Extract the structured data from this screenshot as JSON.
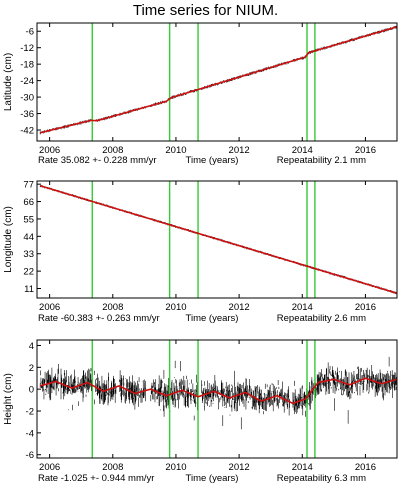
{
  "title": "Time series for NIUM.",
  "colors": {
    "data": "#000000",
    "model": "#cc1010",
    "break": "#33cc33",
    "frame": "#000000"
  },
  "chart_data": [
    {
      "type": "line",
      "ylabel": "Latitude (cm)",
      "xlabel": "Time (years)",
      "xlim": [
        2005.6,
        2017.0
      ],
      "ylim": [
        -46,
        -3
      ],
      "yticks": [
        -6,
        -12,
        -18,
        -24,
        -30,
        -36,
        -42
      ],
      "xticks": [
        2006,
        2008,
        2010,
        2012,
        2014,
        2016
      ],
      "rate": "Rate 35.082 +- 0.228 mm/yr",
      "repeatability": "Repeatability 2.1 mm",
      "breaks": [
        2007.35,
        2009.8,
        2010.7,
        2014.15,
        2014.4
      ],
      "series": [
        {
          "x": [
            2005.7,
            2007.3,
            2007.5,
            2009.7,
            2009.85,
            2014.1,
            2014.2,
            2017.0
          ],
          "values": [
            -43.0,
            -38.5,
            -38.6,
            -31.5,
            -30.2,
            -15.4,
            -13.8,
            -4.4
          ]
        }
      ],
      "data_gaps": [
        [
          2006.3,
          2006.35
        ],
        [
          2007.35,
          2007.45
        ],
        [
          2008.1,
          2008.2
        ],
        [
          2009.05,
          2009.2
        ],
        [
          2010.7,
          2010.8
        ],
        [
          2013.6,
          2013.7
        ]
      ],
      "noise": 0.6
    },
    {
      "type": "line",
      "ylabel": "Longitude (cm)",
      "xlabel": "Time (years)",
      "xlim": [
        2005.6,
        2017.0
      ],
      "ylim": [
        5,
        79
      ],
      "yticks": [
        77,
        66,
        55,
        44,
        33,
        22,
        11
      ],
      "xticks": [
        2006,
        2008,
        2010,
        2012,
        2014,
        2016
      ],
      "rate": "Rate -60.383 +- 0.263 mm/yr",
      "repeatability": "Repeatability 2.6 mm",
      "breaks": [
        2007.35,
        2009.8,
        2010.7,
        2014.15,
        2014.4
      ],
      "series": [
        {
          "x": [
            2005.7,
            2017.0
          ],
          "values": [
            76.0,
            8.0
          ]
        }
      ],
      "data_gaps": [
        [
          2006.3,
          2006.35
        ],
        [
          2007.35,
          2007.45
        ],
        [
          2008.1,
          2008.2
        ],
        [
          2009.05,
          2009.2
        ],
        [
          2010.7,
          2010.8
        ],
        [
          2013.6,
          2013.7
        ]
      ],
      "noise": 0.8
    },
    {
      "type": "line",
      "ylabel": "Height (cm)",
      "xlabel": "Time (years)",
      "xlim": [
        2005.6,
        2017.0
      ],
      "ylim": [
        -6.3,
        4.5
      ],
      "yticks": [
        4,
        2,
        0,
        -2,
        -4,
        -6
      ],
      "xticks": [
        2006,
        2008,
        2010,
        2012,
        2014,
        2016
      ],
      "rate": "Rate -1.025 +- 0.944 mm/yr",
      "repeatability": "Repeatability 6.3 mm",
      "breaks": [
        2007.35,
        2009.8,
        2010.7,
        2014.15,
        2014.4
      ],
      "series": [
        {
          "x": [
            2005.7,
            2006.2,
            2006.7,
            2007.2,
            2007.7,
            2008.2,
            2008.7,
            2009.2,
            2009.7,
            2010.2,
            2010.7,
            2011.2,
            2011.7,
            2012.2,
            2012.7,
            2013.2,
            2013.7,
            2014.1,
            2014.5,
            2015.0,
            2015.5,
            2016.0,
            2016.5,
            2017.0
          ],
          "values": [
            0.3,
            0.7,
            0.1,
            0.6,
            -0.2,
            0.3,
            -0.4,
            0.0,
            -0.6,
            -0.1,
            -0.7,
            -0.2,
            -0.8,
            -0.3,
            -1.1,
            -0.6,
            -1.3,
            -0.9,
            0.6,
            0.9,
            0.4,
            1.0,
            0.5,
            0.9
          ]
        }
      ],
      "data_gaps": [
        [
          2006.3,
          2006.35
        ],
        [
          2007.35,
          2007.45
        ],
        [
          2008.1,
          2008.2
        ],
        [
          2009.05,
          2009.2
        ],
        [
          2010.7,
          2010.8
        ],
        [
          2013.6,
          2013.7
        ]
      ],
      "noise": 1.0
    }
  ]
}
